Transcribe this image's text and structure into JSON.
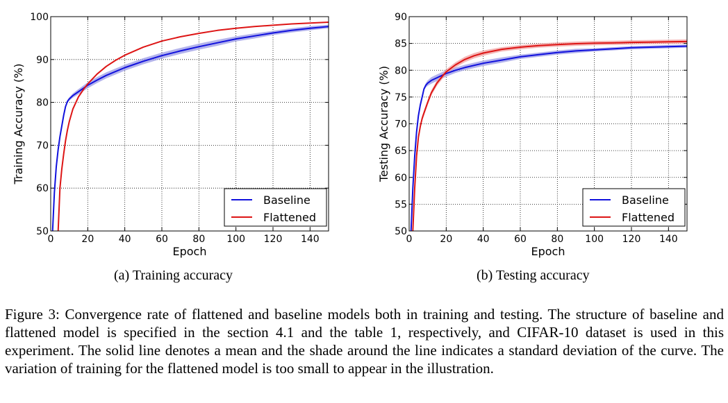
{
  "chart_data": [
    {
      "type": "line",
      "subcaption": "(a) Training accuracy",
      "xlabel": "Epoch",
      "ylabel": "Training Accuracy (%)",
      "xlim": [
        0,
        150
      ],
      "ylim": [
        50,
        100
      ],
      "xticks": [
        0,
        20,
        40,
        60,
        80,
        100,
        120,
        140
      ],
      "yticks": [
        50,
        60,
        70,
        80,
        90,
        100
      ],
      "grid": true,
      "legend_position": "bottom-right",
      "series": [
        {
          "name": "Baseline",
          "color": "#1010dd",
          "shade": "#9999e6",
          "x": [
            1,
            2,
            3,
            4,
            5,
            6,
            7,
            8,
            9,
            10,
            12,
            15,
            20,
            25,
            30,
            40,
            50,
            60,
            70,
            80,
            90,
            100,
            110,
            120,
            130,
            140,
            150
          ],
          "y": [
            50,
            59,
            65,
            69,
            72,
            74.5,
            77,
            79,
            80.2,
            80.8,
            81.6,
            82.5,
            84,
            85.2,
            86.3,
            88.1,
            89.6,
            90.9,
            92,
            93,
            93.9,
            94.8,
            95.5,
            96.2,
            96.8,
            97.3,
            97.7
          ],
          "std": [
            0,
            0.3,
            0.3,
            0.3,
            0.3,
            0.3,
            0.3,
            0.3,
            0.35,
            0.4,
            0.5,
            0.6,
            0.7,
            0.7,
            0.7,
            0.7,
            0.7,
            0.7,
            0.7,
            0.7,
            0.7,
            0.6,
            0.6,
            0.5,
            0.5,
            0.5,
            0.4
          ]
        },
        {
          "name": "Flattened",
          "color": "#dd1414",
          "shade": "",
          "x": [
            4,
            5,
            6,
            7,
            8,
            9,
            10,
            12,
            15,
            18,
            20,
            25,
            30,
            35,
            40,
            50,
            60,
            70,
            80,
            90,
            100,
            110,
            120,
            130,
            140,
            150
          ],
          "y": [
            50,
            60,
            64.5,
            68,
            71,
            73.5,
            75.5,
            78.5,
            81.3,
            83.2,
            84.3,
            86.6,
            88.4,
            89.8,
            91,
            92.9,
            94.3,
            95.3,
            96.1,
            96.8,
            97.3,
            97.7,
            98,
            98.3,
            98.5,
            98.7
          ],
          "std": []
        }
      ]
    },
    {
      "type": "line",
      "subcaption": "(b) Testing accuracy",
      "xlabel": "Epoch",
      "ylabel": "Testing Accuracy (%)",
      "xlim": [
        0,
        150
      ],
      "ylim": [
        50,
        90
      ],
      "xticks": [
        0,
        20,
        40,
        60,
        80,
        100,
        120,
        140
      ],
      "yticks": [
        50,
        55,
        60,
        65,
        70,
        75,
        80,
        85,
        90
      ],
      "grid": true,
      "legend_position": "bottom-right",
      "series": [
        {
          "name": "Baseline",
          "color": "#1010dd",
          "shade": "#9999e6",
          "x": [
            1,
            2,
            3,
            4,
            5,
            6,
            7,
            8,
            9,
            10,
            12,
            15,
            20,
            25,
            30,
            40,
            50,
            60,
            70,
            80,
            90,
            100,
            110,
            120,
            130,
            140,
            150
          ],
          "y": [
            50,
            58,
            64,
            68.5,
            71.5,
            73.5,
            75,
            76.5,
            77.2,
            77.6,
            78.1,
            78.6,
            79.4,
            80,
            80.5,
            81.3,
            81.9,
            82.5,
            82.9,
            83.3,
            83.6,
            83.8,
            84,
            84.2,
            84.3,
            84.4,
            84.5
          ],
          "std": [
            0,
            0.3,
            0.3,
            0.3,
            0.3,
            0.3,
            0.3,
            0.3,
            0.4,
            0.5,
            0.6,
            0.6,
            0.6,
            0.5,
            0.5,
            0.5,
            0.5,
            0.4,
            0.4,
            0.4,
            0.4,
            0.3,
            0.3,
            0.3,
            0.3,
            0.3,
            0.3
          ]
        },
        {
          "name": "Flattened",
          "color": "#dd1414",
          "shade": "#f0a0a0",
          "x": [
            2,
            3,
            4,
            5,
            6,
            7,
            8,
            10,
            12,
            15,
            18,
            20,
            25,
            30,
            35,
            40,
            50,
            60,
            70,
            80,
            90,
            100,
            110,
            120,
            130,
            140,
            150
          ],
          "y": [
            50,
            58,
            64,
            67.5,
            69.5,
            71,
            72,
            74,
            75.8,
            77.6,
            78.9,
            79.7,
            81,
            82,
            82.7,
            83.2,
            83.9,
            84.3,
            84.6,
            84.8,
            84.95,
            85.05,
            85.1,
            85.2,
            85.25,
            85.3,
            85.35
          ],
          "std": [
            0,
            0.4,
            0.5,
            0.5,
            0.5,
            0.5,
            0.5,
            0.5,
            0.5,
            0.5,
            0.5,
            0.5,
            0.5,
            0.5,
            0.5,
            0.5,
            0.4,
            0.4,
            0.4,
            0.4,
            0.4,
            0.4,
            0.4,
            0.4,
            0.4,
            0.4,
            0.4
          ]
        }
      ]
    }
  ],
  "figure_caption": "Figure 3: Convergence rate of flattened and baseline models both in training and testing. The structure of baseline and flattened model is specified in the section 4.1 and the table 1, respectively, and CIFAR-10 dataset is used in this experiment. The solid line denotes a mean and the shade around the line indicates a standard deviation of the curve. The variation of training for the flattened model is too small to appear in the illustration."
}
